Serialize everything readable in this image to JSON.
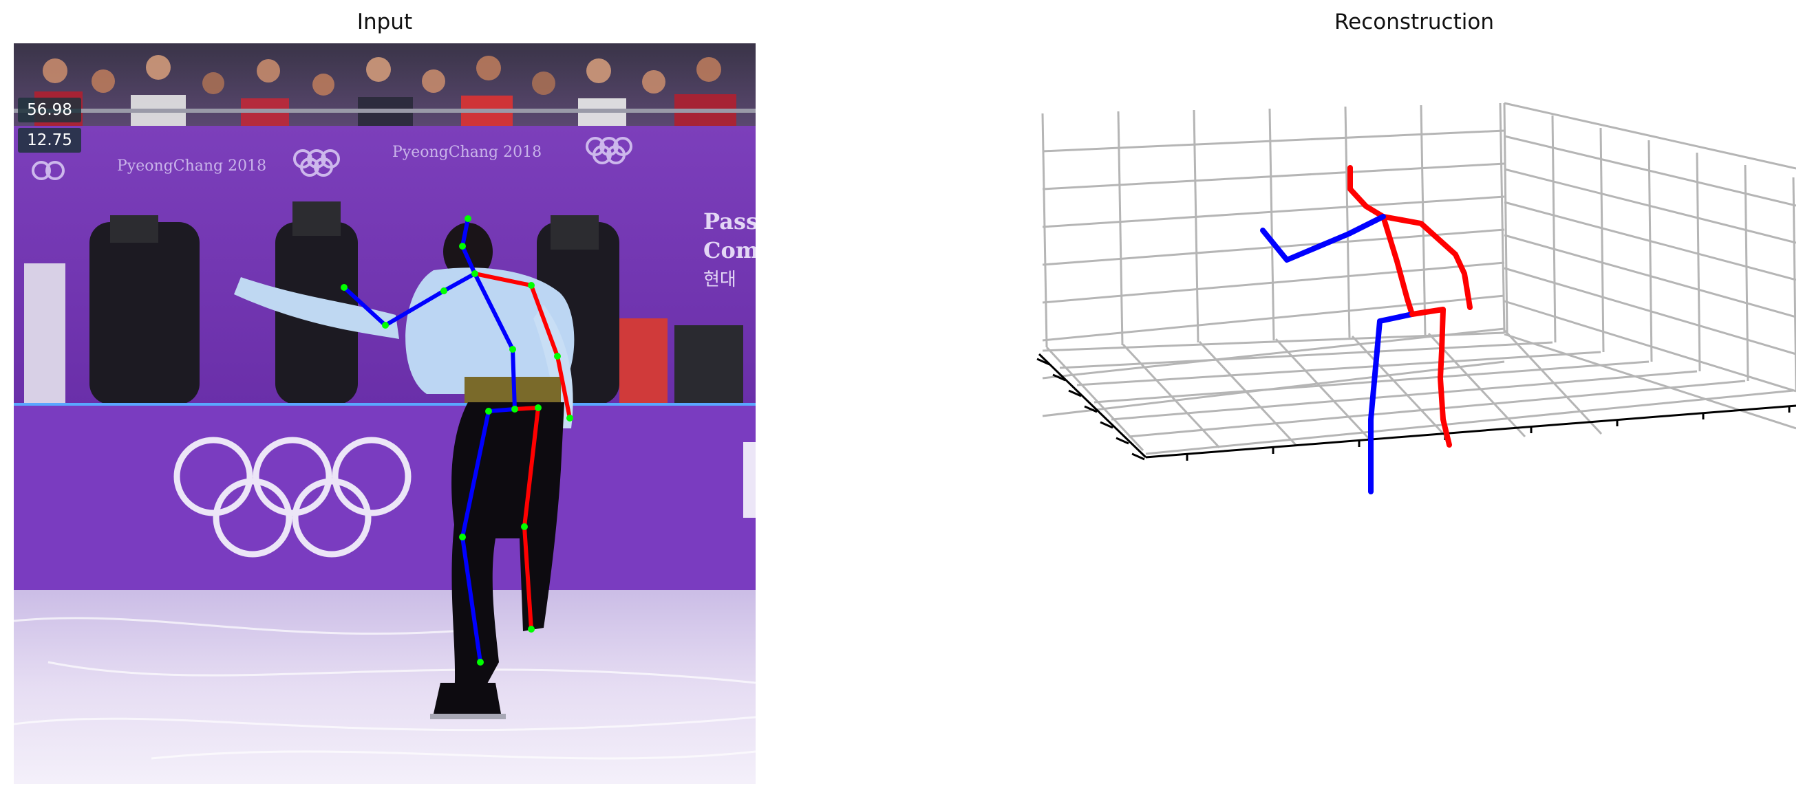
{
  "titles": {
    "left": "Input",
    "right": "Reconstruction"
  },
  "scene": {
    "scoreboard": [
      "56.98",
      "12.75"
    ],
    "banner_text": "PyeongChang 2018",
    "sign_text": [
      "Pass",
      "Com",
      "현대"
    ],
    "olympic_logo": "olympic-rings"
  },
  "colors": {
    "left_limbs": "#ff0000",
    "right_limbs": "#0000ff",
    "joints": "#00ff00",
    "grid": "#b5b5b5",
    "axis": "#000000"
  },
  "legend": null
}
